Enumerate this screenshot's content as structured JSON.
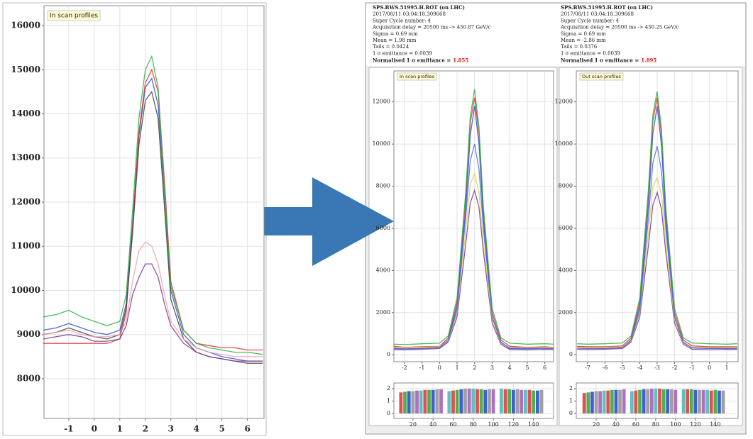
{
  "header": {
    "left": {
      "lines": [
        "SPS.BWS.51995.H.ROT (on LHC)",
        "2017/08/11 03:04:18.309668",
        "Super Cycle number: 4",
        "Acquisition delay = 20500 ms -> 450.87 GeV/c",
        "Sigma = 0.69 mm",
        "Mean = 1.98 mm",
        "Tails = 0.0424",
        "1 σ emittance = 0.0039"
      ],
      "emittance_label": "Normalised 1 σ emittance =",
      "emittance_value": "1.855"
    },
    "right": {
      "lines": [
        "SPS.BWS.51995.H.ROT (on LHC)",
        "2017/08/11 03:04:18.309668",
        "Super Cycle number: 4",
        "Acquisition delay = 20500 ms -> 450.25 GeV/c",
        "Sigma = 0.69 mm",
        "Mean = -2.86 mm",
        "Tails = 0.0376",
        "1 σ emittance = 0.0039"
      ],
      "emittance_label": "Normalised 1 σ emittance =",
      "emittance_value": "1.895"
    }
  },
  "chart_data": [
    {
      "type": "line",
      "title": "In scan profiles",
      "grid": true,
      "x": [
        -2,
        -1.5,
        -1,
        -0.5,
        0,
        0.5,
        1,
        1.25,
        1.5,
        1.75,
        2,
        2.25,
        2.5,
        2.75,
        3,
        3.5,
        4,
        4.5,
        5,
        5.5,
        6,
        6.6
      ],
      "series": [
        {
          "color": "#3050d0",
          "values": [
            9100,
            9150,
            9250,
            9150,
            9050,
            9000,
            9100,
            9700,
            11500,
            13500,
            14600,
            14800,
            14200,
            12200,
            10000,
            9000,
            8700,
            8600,
            8500,
            8450,
            8400,
            8400
          ]
        },
        {
          "color": "#e03030",
          "values": [
            8800,
            8800,
            8800,
            8800,
            8800,
            8800,
            8900,
            9500,
            11400,
            13600,
            14700,
            15000,
            14500,
            12500,
            10200,
            9100,
            8800,
            8750,
            8700,
            8700,
            8650,
            8650
          ]
        },
        {
          "color": "#30b040",
          "values": [
            9400,
            9450,
            9550,
            9400,
            9300,
            9200,
            9300,
            9900,
            11800,
            13900,
            15000,
            15300,
            14600,
            12300,
            10100,
            9100,
            8800,
            8700,
            8650,
            8600,
            8600,
            8550
          ]
        },
        {
          "color": "#404040",
          "values": [
            9000,
            9050,
            9150,
            9050,
            8950,
            8900,
            9000,
            9600,
            11300,
            13300,
            14300,
            14500,
            13900,
            11900,
            9800,
            8900,
            8600,
            8500,
            8450,
            8400,
            8350,
            8350
          ]
        },
        {
          "color": "#7a3a8a",
          "values": [
            8900,
            8950,
            9000,
            8950,
            8850,
            8850,
            8900,
            9200,
            9900,
            10300,
            10600,
            10600,
            10300,
            9700,
            9200,
            8800,
            8600,
            8500,
            8450,
            8400,
            8400,
            8400
          ]
        },
        {
          "color": "#f0a0b0",
          "values": [
            9000,
            9050,
            9100,
            9000,
            8950,
            8950,
            9000,
            9300,
            10200,
            10900,
            11100,
            11000,
            10600,
            9900,
            9300,
            8900,
            8700,
            8600,
            8550,
            8500,
            8500,
            8500
          ]
        }
      ],
      "xlim": [
        -1.97,
        6.65
      ],
      "ylim": [
        7100,
        16450
      ],
      "xticks": [
        -1,
        0,
        1,
        2,
        3,
        4,
        5,
        6
      ],
      "yticks": [
        8000,
        9000,
        10000,
        11000,
        12000,
        13000,
        14000,
        15000,
        16000
      ]
    },
    {
      "type": "line",
      "title": "In scan profiles",
      "grid": true,
      "x": [
        -2.6,
        -2,
        -1,
        0,
        0.5,
        1,
        1.5,
        1.75,
        2,
        2.25,
        2.5,
        3,
        3.5,
        4,
        5,
        6,
        6.5
      ],
      "series": [
        {
          "color": "#e03030",
          "values": [
            400,
            350,
            380,
            400,
            800,
            2500,
            7500,
            11000,
            12200,
            10500,
            6800,
            2000,
            700,
            400,
            350,
            380,
            350
          ]
        },
        {
          "color": "#3050d0",
          "values": [
            300,
            280,
            300,
            350,
            700,
            2300,
            7000,
            10400,
            11800,
            10000,
            6400,
            1800,
            600,
            300,
            280,
            300,
            300
          ]
        },
        {
          "color": "#30b040",
          "values": [
            500,
            480,
            520,
            550,
            900,
            2700,
            7800,
            11300,
            12600,
            10800,
            7000,
            2200,
            800,
            550,
            500,
            520,
            500
          ]
        },
        {
          "color": "#7a3a8a",
          "values": [
            250,
            230,
            260,
            300,
            600,
            1800,
            5300,
            7200,
            7800,
            7000,
            4900,
            1500,
            500,
            250,
            230,
            250,
            250
          ]
        },
        {
          "color": "#e0d050",
          "values": [
            350,
            330,
            350,
            380,
            650,
            2000,
            5900,
            8100,
            8600,
            7700,
            5300,
            1700,
            550,
            350,
            330,
            350,
            350
          ]
        },
        {
          "color": "#5070e0",
          "values": [
            300,
            280,
            300,
            340,
            680,
            2100,
            6600,
            9200,
            10000,
            8800,
            6000,
            1800,
            580,
            320,
            300,
            310,
            300
          ]
        }
      ],
      "xlim": [
        -2.6,
        6.5
      ],
      "ylim": [
        -330,
        13470
      ],
      "xticks": [
        -2,
        -1,
        0,
        1,
        2,
        3,
        4,
        5,
        6
      ],
      "yticks": [
        0,
        2000,
        4000,
        6000,
        8000,
        10000,
        12000
      ]
    },
    {
      "type": "line",
      "title": "Out scan profiles",
      "grid": true,
      "x": [
        -7.6,
        -7,
        -6,
        -5,
        -4.5,
        -4,
        -3.5,
        -3.25,
        -3,
        -2.75,
        -2.5,
        -2,
        -1.5,
        -1,
        0,
        1,
        1.6
      ],
      "series": [
        {
          "color": "#e03030",
          "values": [
            400,
            380,
            380,
            420,
            800,
            2500,
            7600,
            11100,
            12200,
            10400,
            6700,
            2000,
            700,
            420,
            380,
            380,
            380
          ]
        },
        {
          "color": "#3050d0",
          "values": [
            320,
            300,
            300,
            350,
            700,
            2300,
            7100,
            10500,
            11800,
            9900,
            6300,
            1800,
            600,
            320,
            300,
            300,
            300
          ]
        },
        {
          "color": "#30b040",
          "values": [
            520,
            500,
            520,
            560,
            900,
            2700,
            7900,
            11400,
            12500,
            10700,
            6900,
            2200,
            800,
            560,
            520,
            500,
            520
          ]
        },
        {
          "color": "#7a3a8a",
          "values": [
            260,
            240,
            260,
            300,
            600,
            1800,
            5200,
            7100,
            7700,
            6900,
            4800,
            1500,
            500,
            260,
            240,
            250,
            250
          ]
        },
        {
          "color": "#e0d050",
          "values": [
            360,
            340,
            350,
            380,
            650,
            2000,
            5800,
            8000,
            8400,
            7600,
            5200,
            1700,
            550,
            360,
            340,
            350,
            350
          ]
        },
        {
          "color": "#5070e0",
          "values": [
            310,
            290,
            300,
            340,
            680,
            2100,
            6500,
            9100,
            9900,
            8700,
            5900,
            1800,
            580,
            320,
            300,
            310,
            300
          ]
        }
      ],
      "xlim": [
        -7.65,
        1.65
      ],
      "ylim": [
        -330,
        13470
      ],
      "xticks": [
        -7,
        -6,
        -5,
        -4,
        -3,
        -2,
        -1,
        0,
        1
      ],
      "yticks": [
        0,
        2000,
        4000,
        6000,
        8000,
        10000,
        12000
      ]
    },
    {
      "type": "bar",
      "colors": [
        "#e05050",
        "#50b050",
        "#4060d0",
        "#a0a0a0",
        "#b070c0",
        "#60c0c0"
      ],
      "grid": true,
      "x": [
        8,
        12,
        16,
        20,
        24,
        28,
        32,
        36,
        40,
        44,
        48,
        56,
        60,
        64,
        68,
        72,
        76,
        80,
        84,
        88,
        92,
        96,
        100,
        108,
        112,
        116,
        120,
        124,
        128,
        132,
        136,
        140,
        144,
        148
      ],
      "values": [
        1.7,
        1.75,
        1.8,
        1.8,
        1.85,
        1.85,
        1.9,
        1.9,
        1.9,
        1.95,
        1.95,
        1.8,
        1.85,
        1.9,
        1.95,
        2.0,
        2.0,
        2.0,
        1.95,
        1.95,
        1.9,
        1.95,
        1.95,
        2.0,
        1.95,
        1.95,
        1.9,
        1.95,
        1.9,
        1.9,
        1.9,
        1.85,
        1.85,
        1.9
      ],
      "xlim": [
        1,
        160
      ],
      "ylim": [
        -0.4,
        2.46
      ],
      "xticks": [
        20,
        40,
        60,
        80,
        100,
        120,
        140
      ],
      "yticks": [
        0,
        1,
        2
      ]
    },
    {
      "type": "bar",
      "colors": [
        "#e05050",
        "#50b050",
        "#4060d0",
        "#a0a0a0",
        "#b070c0",
        "#60c0c0"
      ],
      "grid": true,
      "x": [
        8,
        12,
        16,
        20,
        24,
        28,
        32,
        36,
        40,
        44,
        48,
        56,
        60,
        64,
        68,
        72,
        76,
        80,
        84,
        88,
        92,
        96,
        100,
        108,
        112,
        116,
        120,
        124,
        128,
        132,
        136,
        140,
        144,
        148
      ],
      "values": [
        1.65,
        1.7,
        1.75,
        1.8,
        1.8,
        1.85,
        1.85,
        1.9,
        1.9,
        1.9,
        1.95,
        1.8,
        1.85,
        1.9,
        1.95,
        1.95,
        2.0,
        2.0,
        2.0,
        1.95,
        1.95,
        1.95,
        1.9,
        1.95,
        1.95,
        1.95,
        1.9,
        1.9,
        1.9,
        1.9,
        1.85,
        1.9,
        1.85,
        1.85
      ],
      "xlim": [
        0,
        163
      ],
      "ylim": [
        -0.4,
        2.46
      ],
      "xticks": [
        20,
        40,
        60,
        80,
        100,
        120,
        140
      ],
      "yticks": [
        0,
        1,
        2
      ]
    }
  ]
}
